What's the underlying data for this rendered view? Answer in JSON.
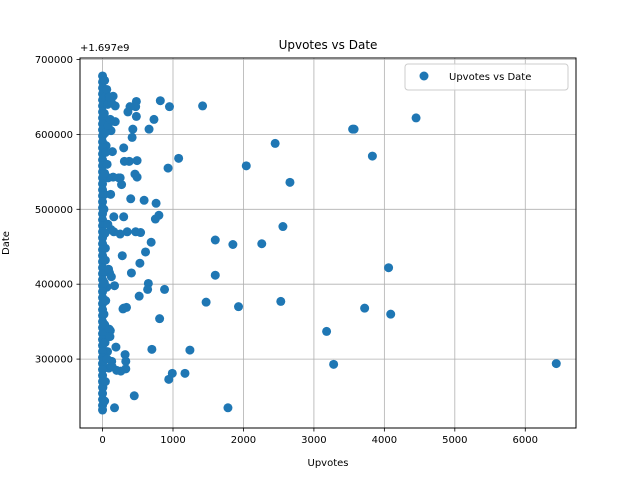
{
  "chart_data": {
    "type": "scatter",
    "title": "Upvotes vs Date",
    "xlabel": "Upvotes",
    "ylabel": "Date",
    "y_offset_label": "+1.697e9",
    "xlim": [
      -320,
      6720
    ],
    "ylim": [
      208000,
      702000
    ],
    "x_ticks": [
      0,
      1000,
      2000,
      3000,
      4000,
      5000,
      6000
    ],
    "x_tick_labels": [
      "0",
      "1000",
      "2000",
      "3000",
      "4000",
      "5000",
      "6000"
    ],
    "y_ticks": [
      300000,
      400000,
      500000,
      600000,
      700000
    ],
    "y_tick_labels": [
      "300000",
      "400000",
      "500000",
      "600000",
      "700000"
    ],
    "grid": true,
    "legend_position": "top-right",
    "color": "#1f77b4",
    "series": [
      {
        "name": "Upvotes vs Date",
        "points": [
          [
            6440,
            294000
          ],
          [
            4450,
            622000
          ],
          [
            4090,
            360000
          ],
          [
            4060,
            422000
          ],
          [
            3830,
            571000
          ],
          [
            3720,
            368000
          ],
          [
            3570,
            607000
          ],
          [
            3550,
            607000
          ],
          [
            3280,
            293000
          ],
          [
            3180,
            337000
          ],
          [
            2660,
            536000
          ],
          [
            2560,
            477000
          ],
          [
            2530,
            377000
          ],
          [
            2450,
            588000
          ],
          [
            2260,
            454000
          ],
          [
            2040,
            558000
          ],
          [
            1930,
            370000
          ],
          [
            1850,
            453000
          ],
          [
            1780,
            235000
          ],
          [
            1600,
            459000
          ],
          [
            1600,
            412000
          ],
          [
            1470,
            376000
          ],
          [
            1420,
            638000
          ],
          [
            1240,
            312000
          ],
          [
            1170,
            281000
          ],
          [
            1080,
            568000
          ],
          [
            990,
            281000
          ],
          [
            950,
            637000
          ],
          [
            940,
            273000
          ],
          [
            930,
            555000
          ],
          [
            880,
            393000
          ],
          [
            820,
            645000
          ],
          [
            810,
            354000
          ],
          [
            800,
            492000
          ],
          [
            760,
            508000
          ],
          [
            750,
            487000
          ],
          [
            730,
            620000
          ],
          [
            700,
            313000
          ],
          [
            690,
            456000
          ],
          [
            660,
            607000
          ],
          [
            650,
            401000
          ],
          [
            640,
            393000
          ],
          [
            610,
            443000
          ],
          [
            590,
            512000
          ],
          [
            540,
            469000
          ],
          [
            530,
            428000
          ],
          [
            520,
            384000
          ],
          [
            490,
            543000
          ],
          [
            490,
            565000
          ],
          [
            480,
            644000
          ],
          [
            480,
            624000
          ],
          [
            470,
            637000
          ],
          [
            470,
            470000
          ],
          [
            460,
            547000
          ],
          [
            450,
            251000
          ],
          [
            430,
            607000
          ],
          [
            420,
            596000
          ],
          [
            410,
            415000
          ],
          [
            400,
            514000
          ],
          [
            390,
            637000
          ],
          [
            380,
            564000
          ],
          [
            360,
            630000
          ],
          [
            350,
            470000
          ],
          [
            340,
            369000
          ],
          [
            330,
            287000
          ],
          [
            330,
            297000
          ],
          [
            320,
            306000
          ],
          [
            310,
            564000
          ],
          [
            300,
            368000
          ],
          [
            300,
            582000
          ],
          [
            300,
            490000
          ],
          [
            290,
            367000
          ],
          [
            280,
            438000
          ],
          [
            270,
            533000
          ],
          [
            260,
            284000
          ],
          [
            250,
            467000
          ],
          [
            250,
            542000
          ],
          [
            230,
            542000
          ],
          [
            200,
            285000
          ],
          [
            190,
            316000
          ],
          [
            180,
            617000
          ],
          [
            180,
            638000
          ],
          [
            170,
            235000
          ],
          [
            170,
            398000
          ],
          [
            160,
            470000
          ],
          [
            160,
            490000
          ],
          [
            150,
            543000
          ],
          [
            150,
            651000
          ],
          [
            140,
            577000
          ],
          [
            130,
            297000
          ],
          [
            120,
            473000
          ],
          [
            120,
            605000
          ],
          [
            110,
            338000
          ],
          [
            100,
            415000
          ],
          [
            90,
            288000
          ],
          [
            80,
            542000
          ],
          [
            70,
            310000
          ],
          [
            60,
            396000
          ],
          [
            50,
            585000
          ],
          [
            40,
            448000
          ],
          [
            30,
            520000
          ],
          [
            20,
            360000
          ],
          [
            10,
            615000
          ],
          [
            5,
            262000
          ],
          [
            0,
            678000
          ],
          [
            0,
            670000
          ],
          [
            0,
            662000
          ],
          [
            0,
            654000
          ],
          [
            0,
            646000
          ],
          [
            0,
            638000
          ],
          [
            0,
            630000
          ],
          [
            0,
            622000
          ],
          [
            0,
            614000
          ],
          [
            0,
            606000
          ],
          [
            0,
            598000
          ],
          [
            0,
            590000
          ],
          [
            0,
            582000
          ],
          [
            0,
            574000
          ],
          [
            0,
            566000
          ],
          [
            0,
            558000
          ],
          [
            0,
            550000
          ],
          [
            0,
            542000
          ],
          [
            0,
            534000
          ],
          [
            0,
            526000
          ],
          [
            0,
            518000
          ],
          [
            0,
            510000
          ],
          [
            0,
            502000
          ],
          [
            0,
            494000
          ],
          [
            0,
            486000
          ],
          [
            0,
            478000
          ],
          [
            0,
            470000
          ],
          [
            0,
            462000
          ],
          [
            0,
            454000
          ],
          [
            0,
            446000
          ],
          [
            0,
            438000
          ],
          [
            0,
            430000
          ],
          [
            0,
            422000
          ],
          [
            0,
            414000
          ],
          [
            0,
            406000
          ],
          [
            0,
            398000
          ],
          [
            0,
            390000
          ],
          [
            0,
            382000
          ],
          [
            0,
            374000
          ],
          [
            0,
            366000
          ],
          [
            0,
            358000
          ],
          [
            0,
            350000
          ],
          [
            0,
            342000
          ],
          [
            0,
            334000
          ],
          [
            0,
            326000
          ],
          [
            0,
            318000
          ],
          [
            0,
            310000
          ],
          [
            0,
            302000
          ],
          [
            0,
            294000
          ],
          [
            0,
            286000
          ],
          [
            0,
            278000
          ],
          [
            0,
            270000
          ],
          [
            0,
            262000
          ],
          [
            0,
            254000
          ],
          [
            0,
            246000
          ],
          [
            0,
            238000
          ],
          [
            0,
            232000
          ],
          [
            30,
            672000
          ],
          [
            40,
            650000
          ],
          [
            25,
            628000
          ],
          [
            35,
            602000
          ],
          [
            45,
            576000
          ],
          [
            30,
            548000
          ],
          [
            20,
            500000
          ],
          [
            35,
            468000
          ],
          [
            40,
            432000
          ],
          [
            25,
            402000
          ],
          [
            45,
            378000
          ],
          [
            30,
            346000
          ],
          [
            35,
            322000
          ],
          [
            20,
            298000
          ],
          [
            40,
            270000
          ],
          [
            30,
            244000
          ],
          [
            60,
            660000
          ],
          [
            70,
            640000
          ],
          [
            80,
            612000
          ],
          [
            90,
            650000
          ],
          [
            65,
            560000
          ],
          [
            75,
            480000
          ],
          [
            85,
            420000
          ],
          [
            95,
            340000
          ],
          [
            65,
            300000
          ],
          [
            120,
            650000
          ],
          [
            130,
            642000
          ],
          [
            110,
            620000
          ],
          [
            100,
            650000
          ],
          [
            115,
            520000
          ],
          [
            125,
            410000
          ],
          [
            105,
            330000
          ],
          [
            135,
            290000
          ]
        ]
      }
    ]
  }
}
